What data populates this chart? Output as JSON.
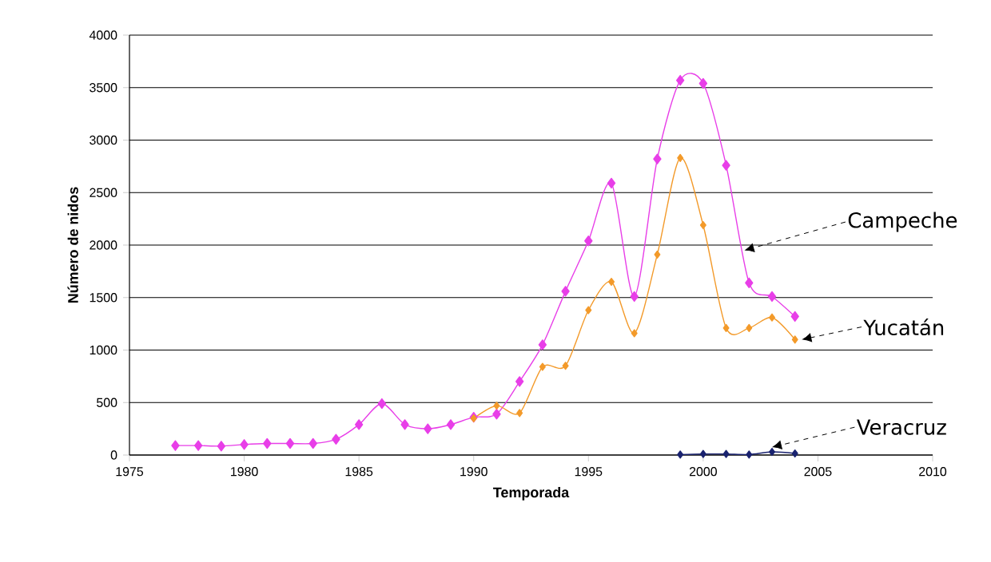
{
  "chart_data": {
    "type": "line",
    "xlabel": "Temporada",
    "ylabel": "Número de nidos",
    "xlim": [
      1975,
      2010
    ],
    "xticks": [
      1975,
      1980,
      1985,
      1990,
      1995,
      2000,
      2005,
      2010
    ],
    "ylim": [
      0,
      4000
    ],
    "yticks": [
      0,
      500,
      1000,
      1500,
      2000,
      2500,
      3000,
      3500,
      4000
    ],
    "grid": "y",
    "marker": "diamond",
    "line_style": "solid",
    "series": [
      {
        "name": "Campeche",
        "color": "#e83ee8",
        "x": [
          1977,
          1978,
          1979,
          1980,
          1981,
          1982,
          1983,
          1984,
          1985,
          1986,
          1987,
          1988,
          1989,
          1990,
          1991,
          1992,
          1993,
          1994,
          1995,
          1996,
          1997,
          1998,
          1999,
          2000,
          2001,
          2002,
          2003,
          2004
        ],
        "values": [
          90,
          90,
          85,
          100,
          110,
          110,
          110,
          150,
          290,
          490,
          290,
          250,
          290,
          360,
          390,
          700,
          1050,
          1560,
          2040,
          2590,
          1510,
          2820,
          3570,
          3540,
          2760,
          1640,
          1510,
          1320
        ]
      },
      {
        "name": "Yucatán",
        "color": "#f39a2a",
        "x": [
          1990,
          1991,
          1992,
          1993,
          1994,
          1995,
          1996,
          1997,
          1998,
          1999,
          2000,
          2001,
          2002,
          2003,
          2004
        ],
        "values": [
          350,
          470,
          400,
          840,
          850,
          1380,
          1650,
          1160,
          1910,
          2830,
          2190,
          1210,
          1210,
          1310,
          1100
        ]
      },
      {
        "name": "Veracruz",
        "color": "#1a2370",
        "x": [
          1999,
          2000,
          2001,
          2002,
          2003,
          2004
        ],
        "values": [
          5,
          10,
          10,
          5,
          30,
          15
        ]
      }
    ]
  }
}
